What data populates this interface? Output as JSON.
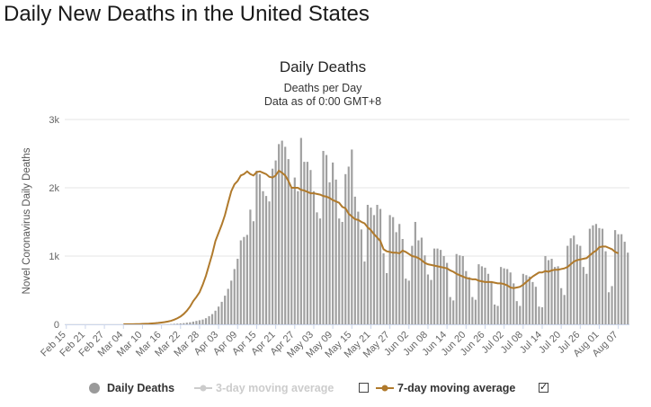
{
  "page": {
    "title": "Daily New Deaths in the United States"
  },
  "chart_data": {
    "type": "bar",
    "title": "Daily Deaths",
    "subtitle_lines": [
      "Deaths per Day",
      "Data as of 0:00 GMT+8"
    ],
    "ylabel": "Novel Coronavirus Daily Deaths",
    "ylim": [
      0,
      3000
    ],
    "yticks": [
      0,
      1000,
      2000,
      3000
    ],
    "ytick_labels": [
      "0",
      "1k",
      "2k",
      "3k"
    ],
    "xtick_labels": [
      "Feb 15",
      "Feb 21",
      "Feb 27",
      "Mar 04",
      "Mar 10",
      "Mar 16",
      "Mar 22",
      "Mar 28",
      "Apr 03",
      "Apr 09",
      "Apr 15",
      "Apr 21",
      "Apr 27",
      "May 03",
      "May 09",
      "May 15",
      "May 21",
      "May 27",
      "Jun 02",
      "Jun 08",
      "Jun 14",
      "Jun 20",
      "Jun 26",
      "Jul 02",
      "Jul 08",
      "Jul 14",
      "Jul 20",
      "Jul 26",
      "Aug 01",
      "Aug 07"
    ],
    "tick_step_days": 6,
    "grid": true,
    "colors": {
      "bars": "#a0a0a0",
      "moving_average": "#b07a2c",
      "grid": "#e6e6e6"
    },
    "series": [
      {
        "name": "Daily Deaths",
        "start_date": "Feb 15",
        "values": [
          0,
          0,
          0,
          0,
          0,
          0,
          0,
          0,
          0,
          0,
          0,
          0,
          0,
          0,
          0,
          0,
          0,
          0,
          0,
          0,
          0,
          0,
          0,
          0,
          0,
          0,
          0,
          0,
          0,
          0,
          0,
          0,
          2,
          4,
          8,
          10,
          14,
          18,
          24,
          30,
          40,
          50,
          60,
          70,
          90,
          120,
          150,
          200,
          260,
          330,
          420,
          520,
          640,
          810,
          960,
          1230,
          1280,
          1310,
          1680,
          1510,
          2250,
          2200,
          1950,
          1880,
          1800,
          2280,
          2400,
          2640,
          2690,
          2600,
          2420,
          2000,
          2150,
          1950,
          2730,
          2380,
          2380,
          2260,
          1950,
          1640,
          1550,
          2540,
          2480,
          2080,
          2370,
          2120,
          1550,
          1500,
          2200,
          2310,
          2560,
          1870,
          1650,
          1390,
          920,
          1750,
          1710,
          1600,
          1750,
          1690,
          1040,
          750,
          1600,
          1570,
          1350,
          1470,
          1250,
          670,
          640,
          1150,
          1500,
          1230,
          1270,
          1010,
          730,
          650,
          1110,
          1110,
          1090,
          1000,
          900,
          400,
          350,
          1030,
          1010,
          1000,
          780,
          690,
          400,
          360,
          880,
          850,
          830,
          740,
          620,
          290,
          270,
          840,
          820,
          810,
          760,
          600,
          340,
          270,
          740,
          720,
          700,
          620,
          550,
          260,
          250,
          1000,
          940,
          960,
          840,
          850,
          530,
          430,
          1150,
          1260,
          1300,
          1170,
          1150,
          840,
          740,
          1400,
          1450,
          1470,
          1410,
          1400,
          1070,
          470,
          560,
          1380,
          1320,
          1320,
          1210,
          1050
        ]
      },
      {
        "name": "7-day moving average",
        "start_date": "Mar 04",
        "values": [
          1,
          1,
          2,
          2,
          3,
          4,
          6,
          8,
          10,
          13,
          17,
          21,
          27,
          33,
          41,
          52,
          68,
          89,
          115,
          152,
          200,
          260,
          340,
          400,
          470,
          580,
          710,
          870,
          1030,
          1220,
          1340,
          1460,
          1600,
          1780,
          1950,
          2050,
          2100,
          2180,
          2200,
          2240,
          2200,
          2180,
          2230,
          2240,
          2220,
          2200,
          2160,
          2150,
          2180,
          2250,
          2220,
          2180,
          2100,
          2000,
          2000,
          2000,
          1970,
          1960,
          1940,
          1920,
          1920,
          1910,
          1900,
          1880,
          1870,
          1850,
          1820,
          1800,
          1780,
          1720,
          1700,
          1620,
          1580,
          1540,
          1530,
          1500,
          1480,
          1420,
          1380,
          1320,
          1270,
          1220,
          1100,
          1070,
          1060,
          1050,
          1050,
          1040,
          1080,
          1060,
          1030,
          1000,
          990,
          970,
          940,
          900,
          880,
          870,
          860,
          850,
          840,
          830,
          820,
          790,
          770,
          740,
          720,
          700,
          680,
          670,
          660,
          660,
          640,
          630,
          620,
          620,
          620,
          610,
          600,
          600,
          590,
          570,
          540,
          530,
          540,
          550,
          580,
          620,
          660,
          700,
          730,
          760,
          760,
          780,
          770,
          790,
          800,
          800,
          810,
          820,
          840,
          880,
          920,
          940,
          950,
          960,
          970,
          1010,
          1050,
          1080,
          1130,
          1140,
          1140,
          1120,
          1100,
          1060,
          1040
        ]
      }
    ],
    "legend": [
      {
        "label": "Daily Deaths",
        "state": "shown"
      },
      {
        "label": "3-day moving average",
        "state": "hidden"
      },
      {
        "label": "7-day moving average",
        "state": "shown"
      }
    ]
  }
}
